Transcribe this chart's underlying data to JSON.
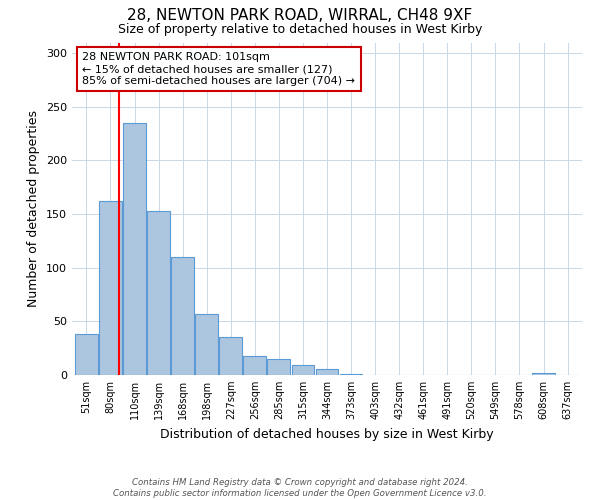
{
  "title": "28, NEWTON PARK ROAD, WIRRAL, CH48 9XF",
  "subtitle": "Size of property relative to detached houses in West Kirby",
  "xlabel": "Distribution of detached houses by size in West Kirby",
  "ylabel": "Number of detached properties",
  "bar_labels": [
    "51sqm",
    "80sqm",
    "110sqm",
    "139sqm",
    "168sqm",
    "198sqm",
    "227sqm",
    "256sqm",
    "285sqm",
    "315sqm",
    "344sqm",
    "373sqm",
    "403sqm",
    "432sqm",
    "461sqm",
    "491sqm",
    "520sqm",
    "549sqm",
    "578sqm",
    "608sqm",
    "637sqm"
  ],
  "bar_values": [
    38,
    162,
    235,
    153,
    110,
    57,
    35,
    18,
    15,
    9,
    6,
    1,
    0,
    0,
    0,
    0,
    0,
    0,
    0,
    2,
    0
  ],
  "bar_color": "#adc6e0",
  "bar_edge_color": "#5b9bd5",
  "red_line_x": 1.35,
  "annotation_text": "28 NEWTON PARK ROAD: 101sqm\n← 15% of detached houses are smaller (127)\n85% of semi-detached houses are larger (704) →",
  "annotation_box_color": "#ffffff",
  "annotation_box_edge_color": "#cc0000",
  "ylim": [
    0,
    310
  ],
  "yticks": [
    0,
    50,
    100,
    150,
    200,
    250,
    300
  ],
  "footnote": "Contains HM Land Registry data © Crown copyright and database right 2024.\nContains public sector information licensed under the Open Government Licence v3.0.",
  "background_color": "#ffffff",
  "grid_color": "#c8d8e8"
}
